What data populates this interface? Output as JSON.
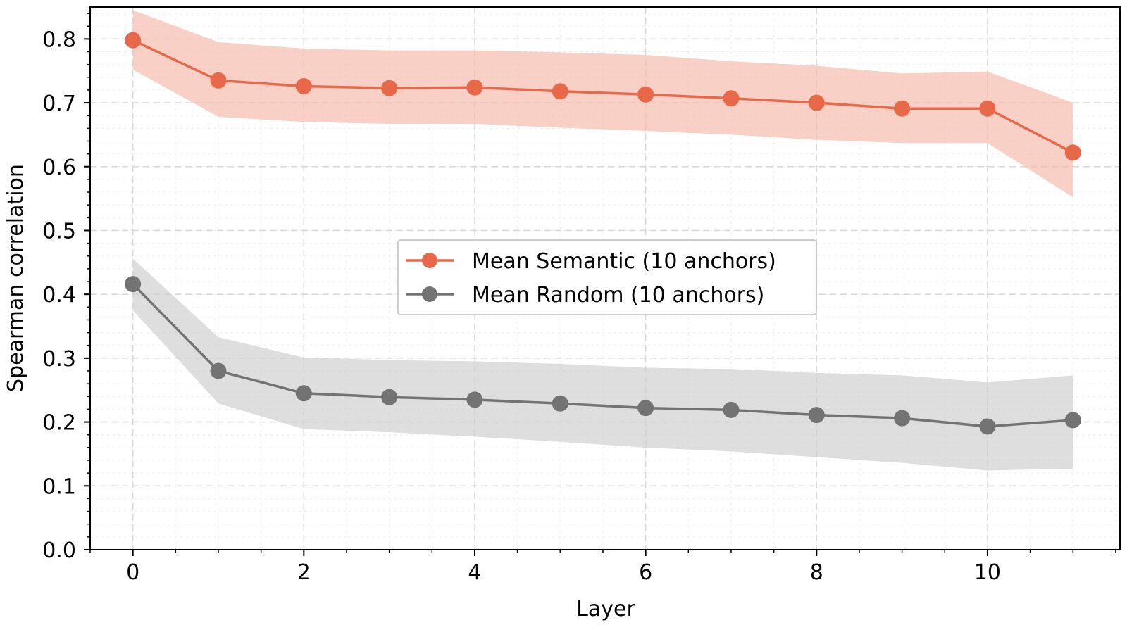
{
  "chart_data": {
    "type": "line",
    "xlabel": "Layer",
    "ylabel": "Spearman correlation",
    "xlim": [
      -0.5,
      11.55
    ],
    "ylim": [
      0.0,
      0.85
    ],
    "x_ticks": [
      0,
      2,
      4,
      6,
      8,
      10
    ],
    "x_minor_step": 0.5,
    "y_ticks": [
      0.0,
      0.1,
      0.2,
      0.3,
      0.4,
      0.5,
      0.6,
      0.7,
      0.8
    ],
    "y_tick_labels": [
      "0.0",
      "0.1",
      "0.2",
      "0.3",
      "0.4",
      "0.5",
      "0.6",
      "0.7",
      "0.8"
    ],
    "y_minor_step": 0.02,
    "grid": true,
    "legend_position": "center",
    "x": [
      0,
      1,
      2,
      3,
      4,
      5,
      6,
      7,
      8,
      9,
      10,
      11
    ],
    "series": [
      {
        "name": "Mean Semantic (10 anchors)",
        "color": "#e8694a",
        "band_color": "#f4b7a8",
        "values": [
          0.798,
          0.735,
          0.726,
          0.723,
          0.724,
          0.718,
          0.713,
          0.707,
          0.7,
          0.691,
          0.691,
          0.622
        ],
        "upper": [
          0.845,
          0.795,
          0.785,
          0.782,
          0.782,
          0.779,
          0.775,
          0.765,
          0.758,
          0.746,
          0.749,
          0.7
        ],
        "lower": [
          0.752,
          0.678,
          0.67,
          0.667,
          0.667,
          0.661,
          0.656,
          0.65,
          0.642,
          0.637,
          0.637,
          0.552
        ]
      },
      {
        "name": "Mean Random (10 anchors)",
        "color": "#737373",
        "band_color": "#cccccc",
        "values": [
          0.416,
          0.28,
          0.245,
          0.239,
          0.235,
          0.229,
          0.222,
          0.219,
          0.211,
          0.206,
          0.193,
          0.203
        ],
        "upper": [
          0.456,
          0.333,
          0.301,
          0.297,
          0.295,
          0.291,
          0.285,
          0.283,
          0.277,
          0.273,
          0.262,
          0.273
        ],
        "lower": [
          0.375,
          0.229,
          0.189,
          0.184,
          0.177,
          0.169,
          0.16,
          0.154,
          0.145,
          0.136,
          0.124,
          0.127
        ]
      }
    ]
  }
}
